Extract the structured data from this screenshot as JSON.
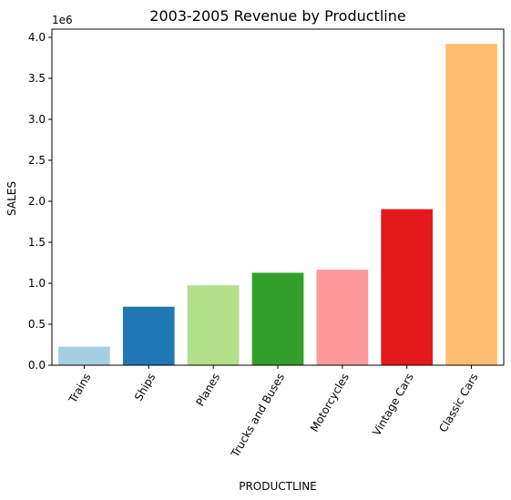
{
  "chart_data": {
    "type": "bar",
    "title": "2003-2005 Revenue by Productline",
    "xlabel": "PRODUCTLINE",
    "ylabel": "SALES",
    "y_scale_label": "1e6",
    "y_scale": 1000000,
    "ylim": [
      0,
      4100000
    ],
    "yticks": [
      0,
      500000,
      1000000,
      1500000,
      2000000,
      2500000,
      3000000,
      3500000,
      4000000
    ],
    "ytick_labels": [
      "0.0",
      "0.5",
      "1.0",
      "1.5",
      "2.0",
      "2.5",
      "3.0",
      "3.5",
      "4.0"
    ],
    "categories": [
      "Trains",
      "Ships",
      "Planes",
      "Trucks and Buses",
      "Motorcycles",
      "Vintage Cars",
      "Classic Cars"
    ],
    "values": [
      226000,
      714000,
      975000,
      1128000,
      1166000,
      1904000,
      3920000
    ],
    "colors": [
      "#a6cee3",
      "#1f78b4",
      "#b2df8a",
      "#33a02c",
      "#fb9a99",
      "#e31a1c",
      "#fdbf6f"
    ],
    "grid": false,
    "legend": "none"
  }
}
